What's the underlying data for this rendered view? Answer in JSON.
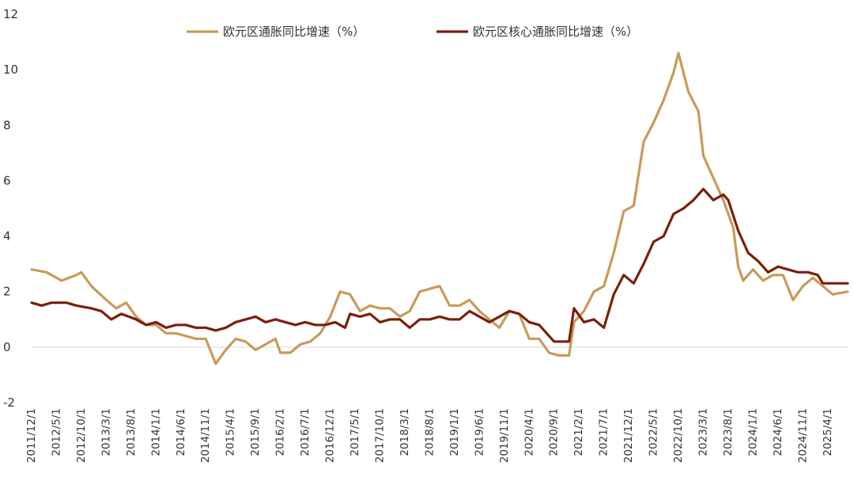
{
  "chart_data": {
    "type": "line",
    "title": "",
    "xlabel": "",
    "ylabel": "",
    "ylim": [
      -2,
      12
    ],
    "y_ticks": [
      -2,
      0,
      2,
      4,
      6,
      8,
      10,
      12
    ],
    "x_tick_labels": [
      "2011/12/1",
      "2012/5/1",
      "2012/10/1",
      "2013/3/1",
      "2013/8/1",
      "2014/1/1",
      "2014/6/1",
      "2014/11/1",
      "2015/4/1",
      "2015/9/1",
      "2016/2/1",
      "2016/7/1",
      "2016/12/1",
      "2017/5/1",
      "2017/10/1",
      "2018/3/1",
      "2018/8/1",
      "2019/1/1",
      "2019/6/1",
      "2019/11/1",
      "2020/4/1",
      "2020/9/1",
      "2021/2/1",
      "2021/7/1",
      "2021/12/1",
      "2022/5/1",
      "2022/10/1",
      "2023/3/1",
      "2023/8/1",
      "2024/1/1",
      "2024/6/1",
      "2024/11/1",
      "2025/4/1"
    ],
    "x_start": "2011/12",
    "x_end": "2025/8",
    "legend_position": "top",
    "grid": false,
    "series": [
      {
        "name": "欧元区通胀同比增速（%）",
        "color": "#c99a5b",
        "points": [
          [
            "2011/12",
            2.8
          ],
          [
            "2012/3",
            2.7
          ],
          [
            "2012/6",
            2.4
          ],
          [
            "2012/9",
            2.6
          ],
          [
            "2012/10",
            2.7
          ],
          [
            "2012/12",
            2.2
          ],
          [
            "2013/3",
            1.7
          ],
          [
            "2013/5",
            1.4
          ],
          [
            "2013/7",
            1.6
          ],
          [
            "2013/9",
            1.1
          ],
          [
            "2013/11",
            0.8
          ],
          [
            "2014/1",
            0.8
          ],
          [
            "2014/3",
            0.5
          ],
          [
            "2014/5",
            0.5
          ],
          [
            "2014/7",
            0.4
          ],
          [
            "2014/9",
            0.3
          ],
          [
            "2014/11",
            0.3
          ],
          [
            "2015/1",
            -0.6
          ],
          [
            "2015/3",
            -0.1
          ],
          [
            "2015/5",
            0.3
          ],
          [
            "2015/7",
            0.2
          ],
          [
            "2015/9",
            -0.1
          ],
          [
            "2015/11",
            0.1
          ],
          [
            "2016/1",
            0.3
          ],
          [
            "2016/2",
            -0.2
          ],
          [
            "2016/4",
            -0.2
          ],
          [
            "2016/6",
            0.1
          ],
          [
            "2016/8",
            0.2
          ],
          [
            "2016/10",
            0.5
          ],
          [
            "2016/12",
            1.1
          ],
          [
            "2017/2",
            2.0
          ],
          [
            "2017/4",
            1.9
          ],
          [
            "2017/6",
            1.3
          ],
          [
            "2017/8",
            1.5
          ],
          [
            "2017/10",
            1.4
          ],
          [
            "2017/12",
            1.4
          ],
          [
            "2018/2",
            1.1
          ],
          [
            "2018/4",
            1.3
          ],
          [
            "2018/6",
            2.0
          ],
          [
            "2018/8",
            2.1
          ],
          [
            "2018/10",
            2.2
          ],
          [
            "2018/12",
            1.5
          ],
          [
            "2019/2",
            1.5
          ],
          [
            "2019/4",
            1.7
          ],
          [
            "2019/6",
            1.3
          ],
          [
            "2019/8",
            1.0
          ],
          [
            "2019/10",
            0.7
          ],
          [
            "2019/12",
            1.3
          ],
          [
            "2020/2",
            1.2
          ],
          [
            "2020/4",
            0.3
          ],
          [
            "2020/6",
            0.3
          ],
          [
            "2020/8",
            -0.2
          ],
          [
            "2020/10",
            -0.3
          ],
          [
            "2020/12",
            -0.3
          ],
          [
            "2021/1",
            0.9
          ],
          [
            "2021/3",
            1.3
          ],
          [
            "2021/5",
            2.0
          ],
          [
            "2021/7",
            2.2
          ],
          [
            "2021/9",
            3.4
          ],
          [
            "2021/11",
            4.9
          ],
          [
            "2022/1",
            5.1
          ],
          [
            "2022/3",
            7.4
          ],
          [
            "2022/5",
            8.1
          ],
          [
            "2022/7",
            8.9
          ],
          [
            "2022/9",
            9.9
          ],
          [
            "2022/10",
            10.6
          ],
          [
            "2022/12",
            9.2
          ],
          [
            "2023/2",
            8.5
          ],
          [
            "2023/3",
            6.9
          ],
          [
            "2023/5",
            6.1
          ],
          [
            "2023/7",
            5.3
          ],
          [
            "2023/9",
            4.3
          ],
          [
            "2023/10",
            2.9
          ],
          [
            "2023/11",
            2.4
          ],
          [
            "2024/1",
            2.8
          ],
          [
            "2024/3",
            2.4
          ],
          [
            "2024/5",
            2.6
          ],
          [
            "2024/7",
            2.6
          ],
          [
            "2024/9",
            1.7
          ],
          [
            "2024/11",
            2.2
          ],
          [
            "2025/1",
            2.5
          ],
          [
            "2025/3",
            2.2
          ],
          [
            "2025/5",
            1.9
          ],
          [
            "2025/8",
            2.0
          ]
        ]
      },
      {
        "name": "欧元区核心通胀同比增速（%）",
        "color": "#7a1f0c",
        "points": [
          [
            "2011/12",
            1.6
          ],
          [
            "2012/2",
            1.5
          ],
          [
            "2012/4",
            1.6
          ],
          [
            "2012/7",
            1.6
          ],
          [
            "2012/9",
            1.5
          ],
          [
            "2012/12",
            1.4
          ],
          [
            "2013/2",
            1.3
          ],
          [
            "2013/4",
            1.0
          ],
          [
            "2013/6",
            1.2
          ],
          [
            "2013/9",
            1.0
          ],
          [
            "2013/11",
            0.8
          ],
          [
            "2014/1",
            0.9
          ],
          [
            "2014/3",
            0.7
          ],
          [
            "2014/5",
            0.8
          ],
          [
            "2014/7",
            0.8
          ],
          [
            "2014/9",
            0.7
          ],
          [
            "2014/11",
            0.7
          ],
          [
            "2015/1",
            0.6
          ],
          [
            "2015/3",
            0.7
          ],
          [
            "2015/5",
            0.9
          ],
          [
            "2015/7",
            1.0
          ],
          [
            "2015/9",
            1.1
          ],
          [
            "2015/11",
            0.9
          ],
          [
            "2016/1",
            1.0
          ],
          [
            "2016/3",
            0.9
          ],
          [
            "2016/5",
            0.8
          ],
          [
            "2016/7",
            0.9
          ],
          [
            "2016/9",
            0.8
          ],
          [
            "2016/11",
            0.8
          ],
          [
            "2017/1",
            0.9
          ],
          [
            "2017/3",
            0.7
          ],
          [
            "2017/4",
            1.2
          ],
          [
            "2017/6",
            1.1
          ],
          [
            "2017/8",
            1.2
          ],
          [
            "2017/10",
            0.9
          ],
          [
            "2017/12",
            1.0
          ],
          [
            "2018/2",
            1.0
          ],
          [
            "2018/4",
            0.7
          ],
          [
            "2018/6",
            1.0
          ],
          [
            "2018/8",
            1.0
          ],
          [
            "2018/10",
            1.1
          ],
          [
            "2018/12",
            1.0
          ],
          [
            "2019/2",
            1.0
          ],
          [
            "2019/4",
            1.3
          ],
          [
            "2019/6",
            1.1
          ],
          [
            "2019/8",
            0.9
          ],
          [
            "2019/10",
            1.1
          ],
          [
            "2019/12",
            1.3
          ],
          [
            "2020/2",
            1.2
          ],
          [
            "2020/4",
            0.9
          ],
          [
            "2020/6",
            0.8
          ],
          [
            "2020/8",
            0.4
          ],
          [
            "2020/9",
            0.2
          ],
          [
            "2020/12",
            0.2
          ],
          [
            "2021/1",
            1.4
          ],
          [
            "2021/3",
            0.9
          ],
          [
            "2021/5",
            1.0
          ],
          [
            "2021/7",
            0.7
          ],
          [
            "2021/9",
            1.9
          ],
          [
            "2021/11",
            2.6
          ],
          [
            "2022/1",
            2.3
          ],
          [
            "2022/3",
            3.0
          ],
          [
            "2022/5",
            3.8
          ],
          [
            "2022/7",
            4.0
          ],
          [
            "2022/9",
            4.8
          ],
          [
            "2022/11",
            5.0
          ],
          [
            "2023/1",
            5.3
          ],
          [
            "2023/3",
            5.7
          ],
          [
            "2023/5",
            5.3
          ],
          [
            "2023/7",
            5.5
          ],
          [
            "2023/8",
            5.3
          ],
          [
            "2023/10",
            4.2
          ],
          [
            "2023/12",
            3.4
          ],
          [
            "2024/2",
            3.1
          ],
          [
            "2024/4",
            2.7
          ],
          [
            "2024/6",
            2.9
          ],
          [
            "2024/8",
            2.8
          ],
          [
            "2024/10",
            2.7
          ],
          [
            "2024/12",
            2.7
          ],
          [
            "2025/2",
            2.6
          ],
          [
            "2025/3",
            2.3
          ],
          [
            "2025/5",
            2.3
          ],
          [
            "2025/8",
            2.3
          ]
        ]
      }
    ]
  }
}
